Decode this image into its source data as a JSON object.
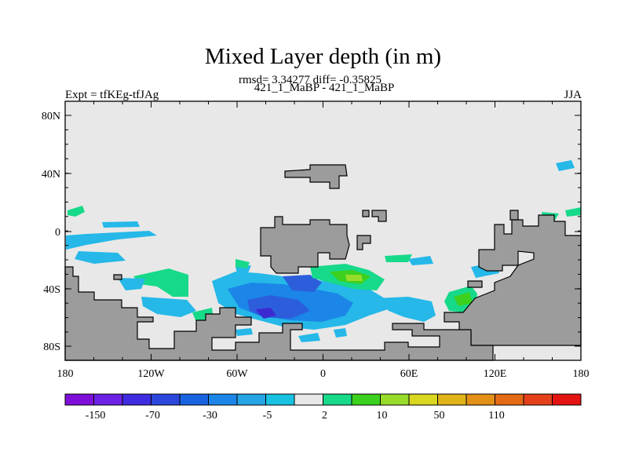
{
  "title": "Mixed Layer depth (in m)",
  "subtitle_stats": "rmsd= 3.34277 diff= -0.35825",
  "subtitle_runs": "421_1_MaBP - 421_1_MaBP",
  "left_label": "Expt = tfKEg-tfJAg",
  "right_label": "JJA",
  "x_axis": {
    "ticks": [
      "180",
      "120W",
      "60W",
      "0",
      "60E",
      "120E",
      "180"
    ]
  },
  "y_axis": {
    "ticks": [
      "80N",
      "40N",
      "0",
      "40S",
      "80S"
    ]
  },
  "colorbar": {
    "labels": [
      "-150",
      "-70",
      "-30",
      "-5",
      "2",
      "10",
      "50",
      "110"
    ],
    "colors": [
      "#7f0fd8",
      "#6b22e6",
      "#3f2ce0",
      "#2c48dc",
      "#1864e0",
      "#1b86e8",
      "#25a5e6",
      "#18c3e2",
      "#e8e8e8",
      "#17d98a",
      "#3cd11e",
      "#98dc2a",
      "#d9d720",
      "#e0b418",
      "#e29016",
      "#e46a16",
      "#e4401a",
      "#e41412"
    ]
  },
  "map_colors": {
    "land": "#9c9c9c",
    "ocean_neutral": "#e8e8e8",
    "cyan": "#25b8e8",
    "blue_light": "#1b86e8",
    "blue": "#2c5edc",
    "blue_dark": "#3a2ad0",
    "green": "#17d98a",
    "green_dark": "#3cd11e",
    "lime": "#98dc2a"
  }
}
